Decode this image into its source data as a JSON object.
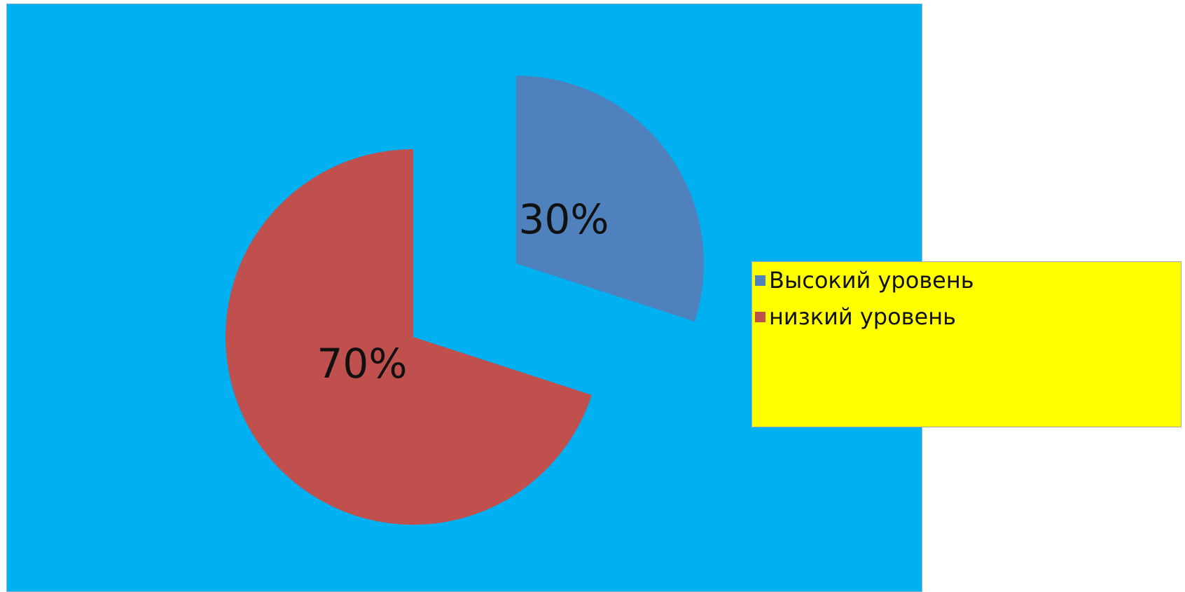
{
  "chart_data": {
    "type": "pie",
    "exploded": true,
    "start_angle_deg": 0,
    "direction": "clockwise",
    "slices": [
      {
        "name": "Высокий уровень",
        "value": 30,
        "label": "30%",
        "color": "#4f81bd"
      },
      {
        "name": "низкий уровень",
        "value": 70,
        "label": "70%",
        "color": "#c0504d"
      }
    ],
    "legend_placement": "right",
    "background_color": "#00b0f0",
    "legend_background_color": "#ffff00"
  }
}
